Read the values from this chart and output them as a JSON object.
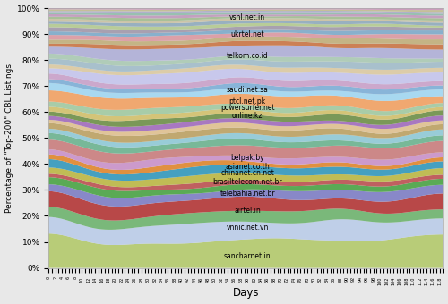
{
  "xlabel": "Days",
  "ylabel": "Percentage of \"Top-200\" CBL Listings",
  "n_days": 120,
  "figsize": [
    5.0,
    3.4
  ],
  "dpi": 100,
  "bg_color": "#e8e8e8",
  "means": [
    9.5,
    6.0,
    3.5,
    4.5,
    2.8,
    2.0,
    1.5,
    2.2,
    2.5,
    1.5,
    2.0,
    3.5,
    2.0,
    1.8,
    2.0,
    1.5,
    1.5,
    1.8,
    1.5,
    1.8,
    3.5,
    2.0,
    1.5,
    1.8,
    3.0,
    1.5,
    2.0,
    1.5,
    3.5,
    1.5,
    1.5,
    1.5,
    1.2,
    1.2,
    1.0,
    1.0,
    0.8,
    0.8,
    0.8,
    0.8,
    0.5,
    0.5,
    0.5
  ],
  "colors": [
    "#b8cc78",
    "#bfcfe8",
    "#7ab87a",
    "#b84848",
    "#8888c8",
    "#5aaa55",
    "#c06060",
    "#c0bc55",
    "#45a0c0",
    "#e09040",
    "#cc9acc",
    "#cc8888",
    "#78b898",
    "#98ccd8",
    "#c0a870",
    "#e0c498",
    "#a878c0",
    "#7a9858",
    "#d4c478",
    "#a8cca8",
    "#f0a870",
    "#a8d8f0",
    "#88b4d8",
    "#cca8cc",
    "#c8c8ec",
    "#dccca8",
    "#a8c0cc",
    "#b0ccb8",
    "#b4b4d8",
    "#cc8055",
    "#c4b485",
    "#dca0a8",
    "#88b0cc",
    "#a8a0b0",
    "#b8cc98",
    "#98b0c0",
    "#ccc4a8",
    "#a8c098",
    "#c4a0c0",
    "#98c0b0",
    "#b0b0cc",
    "#c4c098",
    "#cc9cbc"
  ],
  "label_positions": [
    [
      "sancharnet.in",
      60,
      4.5
    ],
    [
      "vnnic.net.vn",
      60,
      15.5
    ],
    [
      "airtel.in",
      60,
      22.0
    ],
    [
      "telebahia.net.br",
      60,
      28.5
    ],
    [
      "brasiltelecom.net.br",
      60,
      33.0
    ],
    [
      "chinanet.cn.net",
      60,
      36.5
    ],
    [
      "asianet.co.th",
      60,
      39.0
    ],
    [
      "belpak.by",
      60,
      42.5
    ],
    [
      "online.kz",
      60,
      58.5
    ],
    [
      "powersurfer.net",
      60,
      61.5
    ],
    [
      "ptcl.net.pk",
      60,
      64.0
    ],
    [
      "saudi.net.sa",
      60,
      68.5
    ],
    [
      "telkom.co.id",
      60,
      81.5
    ],
    [
      "ukrtel.net",
      60,
      90.0
    ],
    [
      "vsnl.net.in",
      60,
      96.5
    ]
  ]
}
